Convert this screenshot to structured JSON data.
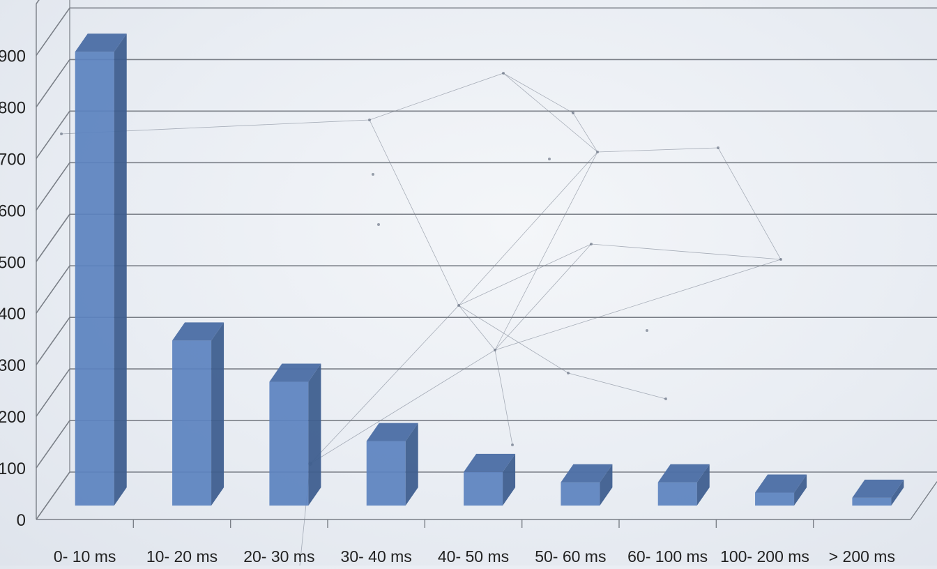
{
  "chart_data": {
    "type": "bar",
    "title": "",
    "xlabel": "",
    "ylabel": "",
    "categories": [
      "0- 10 ms",
      "10- 20 ms",
      "20- 30 ms",
      "30- 40 ms",
      "40- 50 ms",
      "50- 60 ms",
      "60- 100 ms",
      "100- 200 ms",
      "> 200 ms"
    ],
    "values": [
      880,
      320,
      240,
      125,
      65,
      45,
      45,
      25,
      15
    ],
    "ylim": [
      0,
      900
    ],
    "yticks": [
      0,
      100,
      200,
      300,
      400,
      500,
      600,
      700,
      800,
      900
    ],
    "grid": true,
    "style": "3d-column",
    "colors": {
      "bar_front": "#5b82bf",
      "bar_side": "#3f5f8f",
      "bar_top": "#4d6fa6",
      "grid": "#7a7f87",
      "axis_text": "#222222"
    }
  }
}
